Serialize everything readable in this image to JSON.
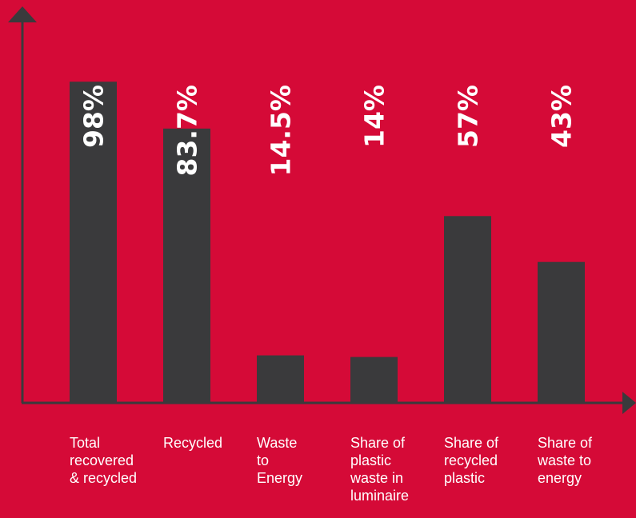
{
  "chart_data": {
    "type": "bar",
    "categories": [
      "Total\nrecovered\n& recycled",
      "Recycled",
      "Waste\nto\nEnergy",
      "Share of\nplastic\nwaste in\nluminaire",
      "Share of\nrecycled\nplastic",
      "Share of\nwaste to\nenergy"
    ],
    "values": [
      98,
      83.7,
      14.5,
      14,
      57,
      43
    ],
    "value_labels": [
      "98%",
      "83.7%",
      "14.5%",
      "14%",
      "57%",
      "43%"
    ],
    "title": "",
    "xlabel": "",
    "ylabel": "",
    "ylim": [
      0,
      100
    ],
    "grid": false,
    "legend": "none"
  },
  "colors": {
    "background": "#d50a37",
    "bar": "#3a3a3c",
    "axis": "#3a3a3c",
    "label_on_bar": "#ffffff",
    "label_on_background": "#ffffff",
    "category_text": "#ffffff"
  }
}
